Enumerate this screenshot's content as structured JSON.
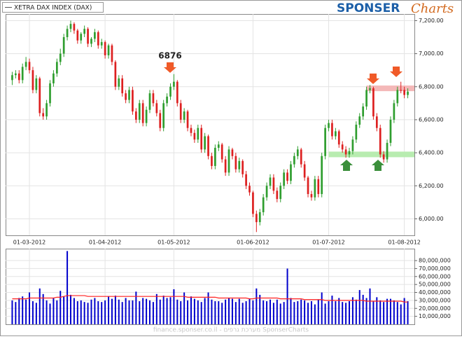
{
  "chart_data": {
    "type": "candlestick",
    "legend": "XETRA DAX INDEX (DAX)",
    "annotation": "6876",
    "categories": [
      null,
      null,
      null,
      null,
      null,
      "01-03-2012",
      null,
      null,
      null,
      null,
      null,
      null,
      null,
      null,
      null,
      null,
      null,
      null,
      null,
      null,
      null,
      null,
      null,
      null,
      null,
      null,
      null,
      "01-04-2012",
      null,
      null,
      null,
      null,
      null,
      null,
      null,
      null,
      null,
      null,
      null,
      null,
      null,
      null,
      null,
      null,
      null,
      null,
      null,
      "01-05-2012",
      null,
      null,
      null,
      null,
      null,
      null,
      null,
      null,
      null,
      null,
      null,
      null,
      null,
      null,
      null,
      null,
      null,
      null,
      null,
      null,
      null,
      null,
      "01-06-2012",
      null,
      null,
      null,
      null,
      null,
      null,
      null,
      null,
      null,
      null,
      null,
      null,
      null,
      null,
      null,
      null,
      null,
      null,
      null,
      null,
      null,
      "01-07-2012",
      null,
      null,
      null,
      null,
      null,
      null,
      null,
      null,
      null,
      null,
      null,
      null,
      null,
      null,
      null,
      null,
      null,
      null,
      null,
      null,
      null,
      "01-08-2012",
      null
    ],
    "open": [
      6840,
      6870,
      6880,
      6840,
      6920,
      6950,
      6900,
      6780,
      6850,
      6640,
      6620,
      6700,
      6820,
      6880,
      6950,
      7000,
      7100,
      7150,
      7180,
      7140,
      7080,
      7120,
      7150,
      7060,
      7090,
      7130,
      7050,
      7070,
      6990,
      7050,
      6950,
      6800,
      6850,
      6760,
      6720,
      6780,
      6650,
      6600,
      6700,
      6580,
      6660,
      6760,
      6700,
      6640,
      6550,
      6700,
      6740,
      6800,
      6830,
      6700,
      6600,
      6650,
      6550,
      6520,
      6480,
      6550,
      6420,
      6500,
      6380,
      6320,
      6430,
      6450,
      6360,
      6280,
      6420,
      6380,
      6300,
      6350,
      6270,
      6200,
      6160,
      6030,
      5980,
      6040,
      6130,
      6200,
      6250,
      6170,
      6120,
      6200,
      6280,
      6230,
      6330,
      6380,
      6420,
      6330,
      6250,
      6150,
      6130,
      6240,
      6150,
      6380,
      6550,
      6580,
      6500,
      6530,
      6450,
      6420,
      6390,
      6410,
      6480,
      6570,
      6620,
      6680,
      6780,
      6790,
      6620,
      6550,
      6390,
      6360,
      6460,
      6600,
      6700,
      6780,
      6780,
      6750
    ],
    "high": [
      6890,
      6900,
      6900,
      6940,
      6980,
      6970,
      6920,
      6870,
      6860,
      6670,
      6720,
      6840,
      6900,
      6970,
      7030,
      7120,
      7170,
      7200,
      7190,
      7150,
      7130,
      7170,
      7160,
      7100,
      7150,
      7140,
      7090,
      7080,
      7060,
      7060,
      6960,
      6870,
      6870,
      6780,
      6800,
      6800,
      6670,
      6720,
      6720,
      6680,
      6780,
      6780,
      6720,
      6660,
      6720,
      6760,
      6820,
      6876,
      6840,
      6720,
      6670,
      6660,
      6570,
      6540,
      6570,
      6570,
      6520,
      6510,
      6400,
      6450,
      6470,
      6460,
      6380,
      6440,
      6430,
      6400,
      6370,
      6360,
      6290,
      6220,
      6170,
      6050,
      6060,
      6150,
      6220,
      6270,
      6270,
      6190,
      6220,
      6300,
      6300,
      6350,
      6400,
      6440,
      6430,
      6350,
      6260,
      6170,
      6260,
      6260,
      6400,
      6570,
      6600,
      6600,
      6550,
      6540,
      6470,
      6440,
      6430,
      6500,
      6590,
      6640,
      6700,
      6800,
      6810,
      6800,
      6640,
      6570,
      6410,
      6480,
      6620,
      6720,
      6800,
      6830,
      6800,
      6790
    ],
    "low": [
      6810,
      6850,
      6820,
      6820,
      6900,
      6880,
      6760,
      6760,
      6620,
      6600,
      6600,
      6680,
      6800,
      6860,
      6930,
      6980,
      7080,
      7130,
      7120,
      7060,
      7060,
      7100,
      7040,
      7040,
      7070,
      7030,
      7030,
      6970,
      6970,
      6930,
      6780,
      6780,
      6740,
      6700,
      6700,
      6630,
      6580,
      6580,
      6560,
      6560,
      6640,
      6680,
      6620,
      6530,
      6530,
      6680,
      6720,
      6780,
      6680,
      6580,
      6580,
      6530,
      6500,
      6460,
      6460,
      6400,
      6400,
      6360,
      6300,
      6300,
      6410,
      6340,
      6260,
      6260,
      6360,
      6280,
      6280,
      6250,
      6180,
      6140,
      6010,
      5920,
      5960,
      6020,
      6110,
      6180,
      6150,
      6100,
      6100,
      6180,
      6210,
      6210,
      6310,
      6360,
      6310,
      6230,
      6130,
      6110,
      6110,
      6130,
      6130,
      6360,
      6530,
      6480,
      6480,
      6430,
      6400,
      6370,
      6370,
      6390,
      6460,
      6550,
      6600,
      6660,
      6760,
      6600,
      6530,
      6370,
      6340,
      6340,
      6440,
      6580,
      6680,
      6760,
      6730,
      6730
    ],
    "close": [
      6870,
      6880,
      6840,
      6920,
      6950,
      6900,
      6780,
      6850,
      6640,
      6620,
      6700,
      6820,
      6880,
      6950,
      7000,
      7100,
      7150,
      7180,
      7140,
      7080,
      7120,
      7150,
      7060,
      7090,
      7130,
      7050,
      7070,
      6990,
      7050,
      6950,
      6800,
      6850,
      6760,
      6720,
      6780,
      6650,
      6600,
      6700,
      6580,
      6660,
      6760,
      6700,
      6640,
      6550,
      6700,
      6740,
      6800,
      6830,
      6700,
      6600,
      6650,
      6550,
      6520,
      6480,
      6550,
      6420,
      6500,
      6380,
      6320,
      6430,
      6450,
      6360,
      6280,
      6420,
      6380,
      6300,
      6350,
      6270,
      6200,
      6160,
      6030,
      5980,
      6040,
      6130,
      6200,
      6250,
      6170,
      6120,
      6200,
      6280,
      6230,
      6330,
      6380,
      6420,
      6330,
      6250,
      6150,
      6130,
      6240,
      6150,
      6380,
      6550,
      6580,
      6500,
      6530,
      6450,
      6420,
      6390,
      6410,
      6480,
      6570,
      6620,
      6680,
      6780,
      6790,
      6620,
      6550,
      6390,
      6360,
      6460,
      6600,
      6700,
      6780,
      6780,
      6750,
      6770
    ],
    "up_color": "#2f9e2f",
    "down_color": "#dd2020",
    "ylim": [
      5900,
      7240
    ],
    "yticks": [
      {
        "value": 6000,
        "label": "6,000.00"
      },
      {
        "value": 6200,
        "label": "6,200.00"
      },
      {
        "value": 6400,
        "label": "6,400.00"
      },
      {
        "value": 6600,
        "label": "6,600.00"
      },
      {
        "value": 6800,
        "label": "6,800.00"
      },
      {
        "value": 7000,
        "label": "7,000.00"
      },
      {
        "value": 7200,
        "label": "7,200.00"
      }
    ],
    "grid": true,
    "resistance": 6790,
    "resistance_color": "#f4b8b8",
    "support": 6390,
    "support_color": "#b8ecb0",
    "volume": {
      "color": "#0000cc",
      "values": [
        30000000,
        28000000,
        33000000,
        35000000,
        31000000,
        40000000,
        29000000,
        27000000,
        45000000,
        38000000,
        30000000,
        26000000,
        33000000,
        30000000,
        42000000,
        35000000,
        92000000,
        37000000,
        33000000,
        29000000,
        30000000,
        28000000,
        27000000,
        31000000,
        33000000,
        29000000,
        28000000,
        30000000,
        35000000,
        32000000,
        36000000,
        31000000,
        28000000,
        33000000,
        30000000,
        30000000,
        41000000,
        29000000,
        33000000,
        32000000,
        30000000,
        28000000,
        38000000,
        31000000,
        36000000,
        33000000,
        34000000,
        44000000,
        31000000,
        29000000,
        40000000,
        30000000,
        35000000,
        32000000,
        30000000,
        28000000,
        33000000,
        40000000,
        31000000,
        29000000,
        29000000,
        27000000,
        31000000,
        33000000,
        32000000,
        28000000,
        32000000,
        27000000,
        29000000,
        32000000,
        30000000,
        45000000,
        37000000,
        30000000,
        29000000,
        31000000,
        27000000,
        31000000,
        26000000,
        28000000,
        70000000,
        33000000,
        28000000,
        29000000,
        31000000,
        30000000,
        27000000,
        29000000,
        25000000,
        31000000,
        40000000,
        26000000,
        29000000,
        36000000,
        29000000,
        33000000,
        28000000,
        27000000,
        29000000,
        34000000,
        31000000,
        43000000,
        37000000,
        33000000,
        45000000,
        29000000,
        34000000,
        30000000,
        28000000,
        32000000,
        32000000,
        30000000,
        28000000,
        25000000,
        33000000,
        29000000
      ],
      "ma_color": "#ff2020",
      "ma_values": [
        32000000,
        32000000,
        32000000,
        32000000,
        32000000,
        33000000,
        33000000,
        33000000,
        33000000,
        33000000,
        33000000,
        33000000,
        33000000,
        34000000,
        34000000,
        35000000,
        36000000,
        36000000,
        36000000,
        36000000,
        36000000,
        36000000,
        35000000,
        35000000,
        35000000,
        35000000,
        35000000,
        35000000,
        35000000,
        35000000,
        35000000,
        35000000,
        35000000,
        35000000,
        35000000,
        35000000,
        35000000,
        35000000,
        35000000,
        35000000,
        35000000,
        35000000,
        35000000,
        35000000,
        35000000,
        35000000,
        35000000,
        35000000,
        35000000,
        35000000,
        35000000,
        34000000,
        34000000,
        34000000,
        34000000,
        34000000,
        34000000,
        34000000,
        34000000,
        34000000,
        33000000,
        33000000,
        33000000,
        33000000,
        33000000,
        33000000,
        33000000,
        33000000,
        33000000,
        32000000,
        32000000,
        33000000,
        33000000,
        33000000,
        33000000,
        33000000,
        33000000,
        33000000,
        32000000,
        32000000,
        32000000,
        32000000,
        32000000,
        32000000,
        32000000,
        31000000,
        31000000,
        31000000,
        31000000,
        31000000,
        31000000,
        30000000,
        30000000,
        30000000,
        30000000,
        30000000,
        30000000,
        30000000,
        30000000,
        30000000,
        30000000,
        30000000,
        30000000,
        29000000,
        29000000,
        29000000,
        29000000,
        29000000,
        29000000,
        29000000,
        29000000,
        29000000,
        29000000,
        29000000,
        28000000,
        28000000
      ],
      "ylim": [
        0,
        95000000
      ],
      "yticks": [
        {
          "value": 10000000,
          "label": "10,000,000"
        },
        {
          "value": 20000000,
          "label": "20,000,000"
        },
        {
          "value": 30000000,
          "label": "30,000,000"
        },
        {
          "value": 40000000,
          "label": "40,000,000"
        },
        {
          "value": 50000000,
          "label": "50,000,000"
        },
        {
          "value": 60000000,
          "label": "60,000,000"
        },
        {
          "value": 70000000,
          "label": "70,000,000"
        },
        {
          "value": 80000000,
          "label": "80,000,000"
        }
      ]
    }
  },
  "branding": {
    "logo_main": "SPONSER",
    "logo_script": "Charts",
    "footer": "finance.sponser.co.il - מערכת גרפים SponserCharts"
  }
}
